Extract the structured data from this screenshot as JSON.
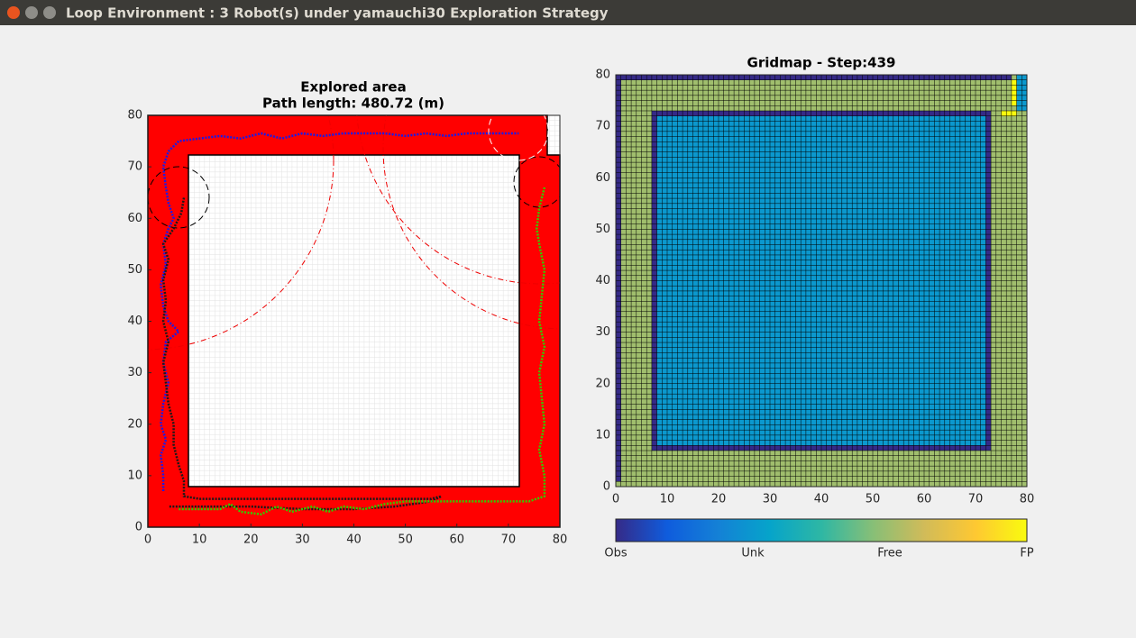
{
  "window_title": "Loop Environment : 3 Robot(s) under yamauchi30 Exploration Strategy",
  "chart_data": [
    {
      "type": "line",
      "title": "Explored area",
      "subtitle": "Path length: 480.72 (m)",
      "xlim": [
        0,
        80
      ],
      "ylim": [
        0,
        80
      ],
      "xticks": [
        0,
        10,
        20,
        30,
        40,
        50,
        60,
        70,
        80
      ],
      "yticks": [
        0,
        10,
        20,
        30,
        40,
        50,
        60,
        70,
        80
      ],
      "series": [
        {
          "color": "#1a1ae6",
          "x": [
            3,
            3,
            2.5,
            3.5,
            2.5,
            3,
            4,
            3,
            3.5,
            6,
            4,
            3,
            2.5,
            3.5,
            3,
            4,
            5,
            4,
            3.5,
            3,
            4,
            6,
            10,
            14,
            18,
            22,
            26,
            30,
            34,
            38,
            42,
            46,
            50,
            54,
            58,
            62,
            66,
            69,
            72
          ],
          "values": [
            7,
            10,
            14,
            17,
            20,
            24,
            28,
            32,
            36,
            38,
            40,
            43,
            47,
            51,
            55,
            58,
            60,
            63,
            66,
            70,
            73,
            75,
            75.5,
            76,
            75.5,
            76.5,
            75.5,
            76.5,
            76,
            76.5,
            76.5,
            76.5,
            76,
            76.5,
            76,
            76.5,
            76.5,
            76.5,
            76.5
          ]
        },
        {
          "color": "#1a1a1a",
          "x": [
            7,
            6.5,
            5,
            3,
            4,
            3,
            3.5,
            3,
            4,
            3,
            3.5,
            4,
            5,
            5,
            6,
            7,
            7,
            10,
            20,
            30,
            40,
            50,
            55,
            57,
            55,
            48,
            40,
            30,
            20,
            10,
            4
          ],
          "values": [
            64,
            61,
            58,
            55,
            52,
            48,
            44,
            40,
            36,
            32,
            28,
            24,
            20,
            16,
            12,
            9,
            6,
            5.5,
            5.5,
            5.5,
            5.5,
            5.5,
            5.5,
            6,
            5,
            4,
            3.5,
            3.5,
            4,
            4,
            4
          ]
        },
        {
          "color": "#33cc00",
          "x": [
            6,
            10,
            14,
            16,
            18,
            22,
            25,
            28,
            32,
            35,
            38,
            42,
            46,
            50,
            55,
            60,
            65,
            70,
            74,
            77,
            77,
            76,
            77,
            76.5,
            76,
            77,
            76,
            76.5,
            77,
            76,
            75.5,
            76,
            77
          ],
          "values": [
            3.5,
            3.5,
            3.5,
            4.5,
            3,
            2.5,
            4,
            3,
            4,
            3,
            4,
            3.5,
            4.5,
            5,
            5,
            5,
            5,
            5,
            5,
            6,
            10,
            15,
            20,
            25,
            30,
            35,
            40,
            45,
            50,
            55,
            58,
            62,
            66
          ]
        }
      ]
    },
    {
      "type": "heatmap",
      "title": "Gridmap - Step:439",
      "xlim": [
        0,
        80
      ],
      "ylim": [
        0,
        80
      ],
      "xticks": [
        0,
        10,
        20,
        30,
        40,
        50,
        60,
        70,
        80
      ],
      "yticks": [
        0,
        10,
        20,
        30,
        40,
        50,
        60,
        70,
        80
      ],
      "colormap": [
        "#352a87",
        "#0f5cdd",
        "#1481d6",
        "#06a4ca",
        "#2eb7a4",
        "#87bf77",
        "#d1bb59",
        "#fec832",
        "#f9fb0e"
      ],
      "colorbar": {
        "lim": [
          0,
          3
        ],
        "ticks": [
          {
            "value": 0,
            "label": "Obs"
          },
          {
            "value": 1,
            "label": "Unk"
          },
          {
            "value": 2,
            "label": "Free"
          },
          {
            "value": 3,
            "label": "FP"
          }
        ]
      },
      "regions": [
        {
          "x": [
            0,
            80
          ],
          "y": [
            0,
            80
          ],
          "value": 2
        },
        {
          "x": [
            0,
            1
          ],
          "y": [
            1,
            80
          ],
          "value": 0
        },
        {
          "x": [
            0,
            77
          ],
          "y": [
            79,
            80
          ],
          "value": 0
        },
        {
          "x": [
            7,
            73
          ],
          "y": [
            7,
            73
          ],
          "value": 0
        },
        {
          "x": [
            8,
            72
          ],
          "y": [
            8,
            72
          ],
          "value": 1
        },
        {
          "x": [
            78,
            80
          ],
          "y": [
            73,
            80
          ],
          "value": 1
        },
        {
          "x": [
            77,
            78
          ],
          "y": [
            74,
            79
          ],
          "value": 3
        },
        {
          "x": [
            75,
            78
          ],
          "y": [
            72,
            73
          ],
          "value": 3
        }
      ]
    }
  ]
}
